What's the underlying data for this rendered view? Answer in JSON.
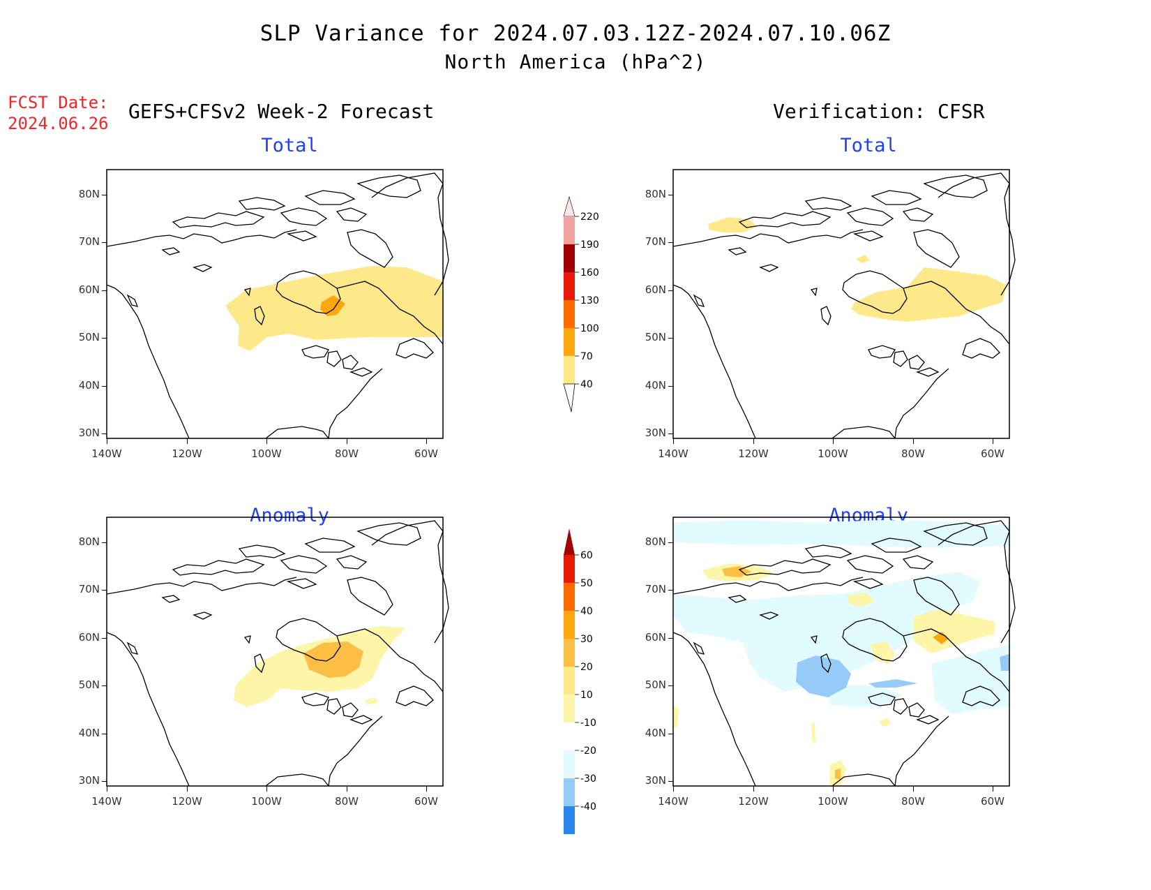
{
  "header": {
    "title": "SLP Variance for 2024.07.03.12Z-2024.07.10.06Z",
    "subtitle": "North America (hPa^2)",
    "fcst_label": "FCST Date:",
    "fcst_date": "2024.06.26",
    "left_title": "GEFS+CFSv2 Week-2 Forecast",
    "right_title": "Verification: CFSR"
  },
  "panels": {
    "fc_total": "Total",
    "fc_anomaly": "Anomaly",
    "ver_total": "Total",
    "ver_anomaly": "Anomaly"
  },
  "axes": {
    "lat_labels": [
      "80N",
      "70N",
      "60N",
      "50N",
      "40N",
      "30N"
    ],
    "lon_labels": [
      "140W",
      "120W",
      "100W",
      "80W",
      "60W"
    ]
  },
  "total_colorbar": {
    "levels": [
      "40",
      "70",
      "100",
      "130",
      "160",
      "190",
      "220"
    ],
    "colors": [
      "#fde88a",
      "#fda70f",
      "#fd6a00",
      "#e81a08",
      "#a40000",
      "#f3a2a2",
      "#fde5e5"
    ]
  },
  "anomaly_colorbar": {
    "levels": [
      "-40",
      "-30",
      "-20",
      "-10",
      "10",
      "20",
      "30",
      "40",
      "50",
      "60"
    ],
    "colors": [
      "#1462e6",
      "#2a86ee",
      "#96cbf8",
      "#e1fbff",
      "#ffffff",
      "#fdf5a8",
      "#fde88a",
      "#fdbe45",
      "#fda70f",
      "#fd6a00",
      "#e81a08",
      "#a40000"
    ]
  },
  "colors": {
    "pale_yellow": "#fdf5a8",
    "yellow": "#fde88a",
    "orange": "#fdbe45",
    "deep_orange": "#fda70f",
    "pale_blue": "#e1fbff",
    "light_blue": "#96cbf8",
    "blue": "#7db9f2"
  }
}
